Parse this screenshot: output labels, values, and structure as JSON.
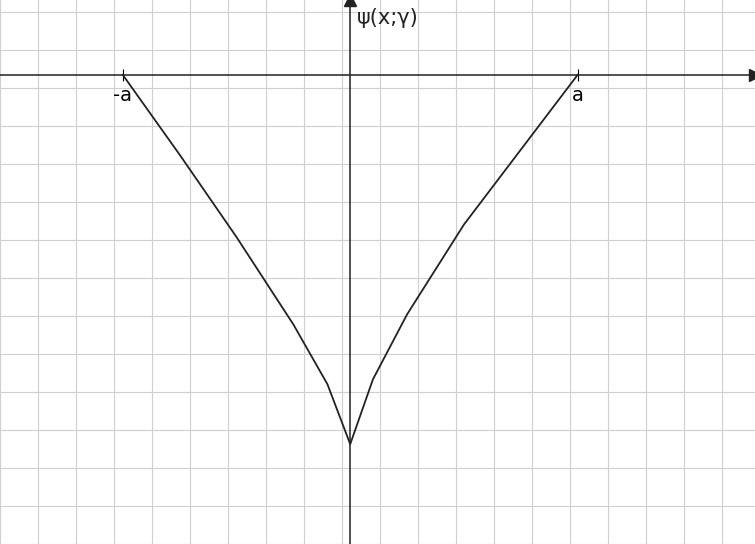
{
  "chart_data": {
    "type": "line",
    "y_label": "ψ(x;γ)",
    "x": [
      -1,
      -0.75,
      -0.5,
      -0.25,
      -0.1,
      0,
      0.1,
      0.25,
      0.5,
      0.75,
      1
    ],
    "values": [
      0,
      -0.32,
      -0.65,
      -1.0,
      -1.24,
      -1.48,
      -1.22,
      -0.96,
      -0.6,
      -0.3,
      0
    ],
    "color": "#222222",
    "xlim": [
      -1.54,
      1.78
    ],
    "ylim": [
      -1.88,
      0.3
    ],
    "xticks": [
      {
        "value": -1,
        "label": "-a"
      },
      {
        "value": 1,
        "label": "a"
      }
    ],
    "tick_labels": "x"
  }
}
